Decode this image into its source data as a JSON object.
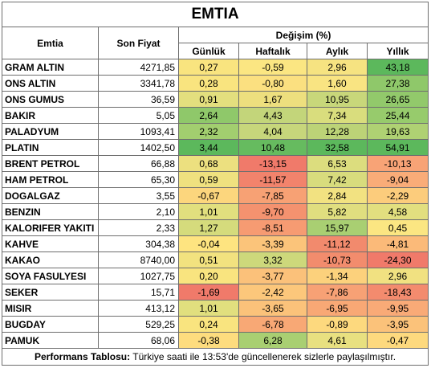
{
  "title": "EMTIA",
  "headers": {
    "name": "Emtia",
    "price": "Son Fiyat",
    "change_group": "Değişim (%)",
    "daily": "Günlük",
    "weekly": "Haftalık",
    "monthly": "Aylık",
    "yearly": "Yıllık"
  },
  "rows": [
    {
      "name": "GRAM ALTIN",
      "price": "4271,85",
      "daily": "0,27",
      "weekly": "-0,59",
      "monthly": "2,96",
      "yearly": "43,18",
      "colors": [
        "#f9e47f",
        "#fbe682",
        "#f6e381",
        "#5cb85c"
      ]
    },
    {
      "name": "ONS ALTIN",
      "price": "3341,78",
      "daily": "0,28",
      "weekly": "-0,80",
      "monthly": "1,60",
      "yearly": "27,38",
      "colors": [
        "#f9e47f",
        "#fbe080",
        "#f9e482",
        "#8fc86a"
      ]
    },
    {
      "name": "ONS GUMUS",
      "price": "36,59",
      "daily": "0,91",
      "weekly": "1,67",
      "monthly": "10,95",
      "yearly": "26,65",
      "colors": [
        "#e3df7e",
        "#eddf7e",
        "#c8d77a",
        "#92c96b"
      ]
    },
    {
      "name": "BAKIR",
      "price": "5,05",
      "daily": "2,64",
      "weekly": "4,43",
      "monthly": "7,34",
      "yearly": "25,44",
      "colors": [
        "#8fc86a",
        "#c3d57a",
        "#d9dd7d",
        "#97cb6c"
      ]
    },
    {
      "name": "PALADYUM",
      "price": "1093,41",
      "daily": "2,32",
      "weekly": "4,04",
      "monthly": "12,28",
      "yearly": "19,63",
      "colors": [
        "#a2ce6f",
        "#c7d67b",
        "#bcd377",
        "#afd173"
      ]
    },
    {
      "name": "PLATIN",
      "price": "1402,50",
      "daily": "3,44",
      "weekly": "10,48",
      "monthly": "32,58",
      "yearly": "54,91",
      "colors": [
        "#5cb85c",
        "#66bb5f",
        "#5cb85c",
        "#5cb85c"
      ]
    },
    {
      "name": "BRENT PETROL",
      "price": "66,88",
      "daily": "0,68",
      "weekly": "-13,15",
      "monthly": "6,53",
      "yearly": "-10,13",
      "colors": [
        "#ece07f",
        "#f07a6a",
        "#dcdd7e",
        "#f8a376"
      ]
    },
    {
      "name": "HAM PETROL",
      "price": "65,30",
      "daily": "0,59",
      "weekly": "-11,57",
      "monthly": "7,42",
      "yearly": "-9,04",
      "colors": [
        "#efe17f",
        "#f2836c",
        "#d8dc7d",
        "#f9ac78"
      ]
    },
    {
      "name": "DOGALGAZ",
      "price": "3,55",
      "daily": "-0,67",
      "weekly": "-7,85",
      "monthly": "2,84",
      "yearly": "-2,29",
      "colors": [
        "#fcd67d",
        "#f7a174",
        "#f2e281",
        "#fccc7c"
      ]
    },
    {
      "name": "BENZIN",
      "price": "2,10",
      "daily": "1,01",
      "weekly": "-9,70",
      "monthly": "5,82",
      "yearly": "4,58",
      "colors": [
        "#e1df7e",
        "#f4926f",
        "#e0de7f",
        "#e2df7f"
      ]
    },
    {
      "name": "KALORIFER YAKITI",
      "price": "2,33",
      "daily": "1,27",
      "weekly": "-8,51",
      "monthly": "15,97",
      "yearly": "0,45",
      "colors": [
        "#d5db7c",
        "#f69b72",
        "#a9cf72",
        "#fbe682"
      ]
    },
    {
      "name": "KAHVE",
      "price": "304,38",
      "daily": "-0,04",
      "weekly": "-3,39",
      "monthly": "-11,12",
      "yearly": "-4,81",
      "colors": [
        "#fee480",
        "#fbc47a",
        "#f28a6d",
        "#fbba79"
      ]
    },
    {
      "name": "KAKAO",
      "price": "8740,00",
      "daily": "0,51",
      "weekly": "3,32",
      "monthly": "-10,73",
      "yearly": "-24,30",
      "colors": [
        "#f2e27f",
        "#cdd87b",
        "#f28c6d",
        "#f07a6a"
      ]
    },
    {
      "name": "SOYA FASULYESI",
      "price": "1027,75",
      "daily": "0,20",
      "weekly": "-3,77",
      "monthly": "-1,34",
      "yearly": "2,96",
      "colors": [
        "#f9e47f",
        "#fbc17a",
        "#fcd17c",
        "#f1e181"
      ]
    },
    {
      "name": "SEKER",
      "price": "15,71",
      "daily": "-1,69",
      "weekly": "-2,42",
      "monthly": "-7,86",
      "yearly": "-18,43",
      "colors": [
        "#f07a6a",
        "#fcc77b",
        "#f7a175",
        "#f38b6e"
      ]
    },
    {
      "name": "MISIR",
      "price": "413,12",
      "daily": "1,01",
      "weekly": "-3,65",
      "monthly": "-6,95",
      "yearly": "-9,95",
      "colors": [
        "#e1df7e",
        "#fbc27a",
        "#f8a875",
        "#f9aa77"
      ]
    },
    {
      "name": "BUGDAY",
      "price": "529,25",
      "daily": "0,24",
      "weekly": "-6,78",
      "monthly": "-0,89",
      "yearly": "-3,95",
      "colors": [
        "#f9e47f",
        "#f8a875",
        "#fdd97e",
        "#fbc27a"
      ]
    },
    {
      "name": "PAMUK",
      "price": "68,06",
      "daily": "-0,38",
      "weekly": "6,28",
      "monthly": "4,61",
      "yearly": "-0,47",
      "colors": [
        "#fddc7e",
        "#a9cf72",
        "#e8e080",
        "#fdd97e"
      ]
    }
  ],
  "footer": {
    "label": "Performans Tablosu:",
    "text": " Türkiye saati ile 13:53'de güncellenerek sizlerle paylaşılmıştır."
  }
}
